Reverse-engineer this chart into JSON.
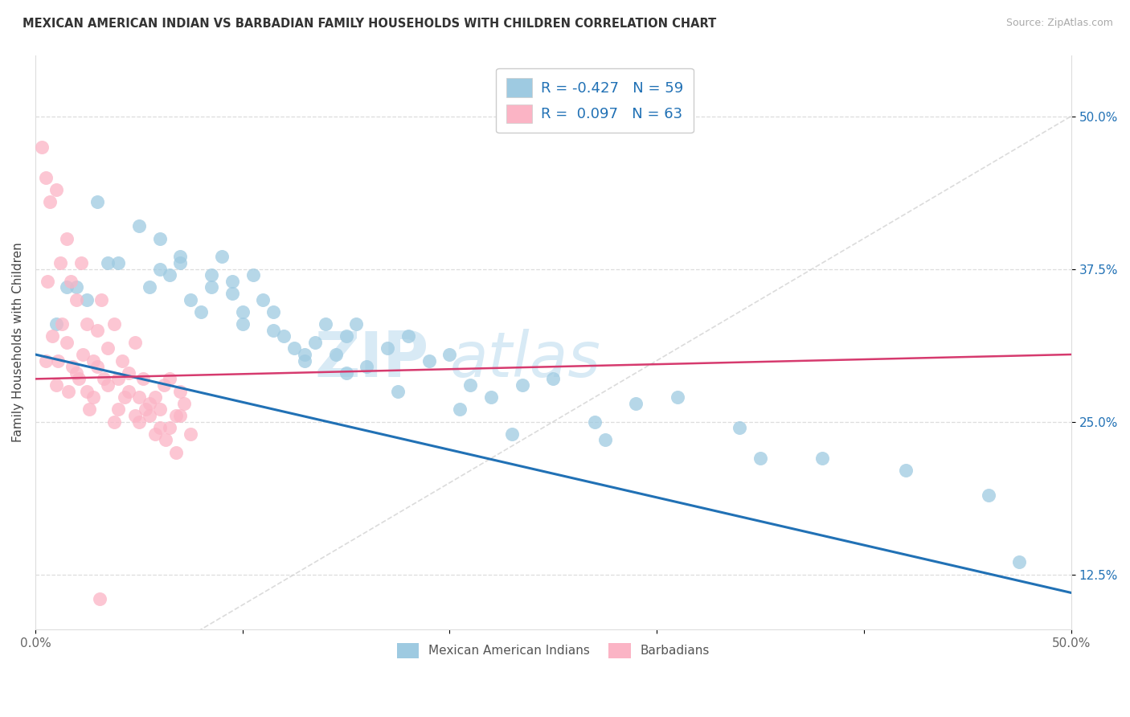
{
  "title": "MEXICAN AMERICAN INDIAN VS BARBADIAN FAMILY HOUSEHOLDS WITH CHILDREN CORRELATION CHART",
  "source": "Source: ZipAtlas.com",
  "ylabel": "Family Households with Children",
  "xlim": [
    0.0,
    50.0
  ],
  "ylim": [
    8.0,
    55.0
  ],
  "y_tick_vals": [
    12.5,
    25.0,
    37.5,
    50.0
  ],
  "y_tick_labels": [
    "12.5%",
    "25.0%",
    "37.5%",
    "50.0%"
  ],
  "x_tick_vals": [
    0,
    10,
    20,
    30,
    40,
    50
  ],
  "x_tick_labels": [
    "0.0%",
    "",
    "",
    "",
    "",
    "50.0%"
  ],
  "legend_R1": "-0.427",
  "legend_N1": "59",
  "legend_R2": "0.097",
  "legend_N2": "63",
  "color_blue": "#9ecae1",
  "color_pink": "#fbb4c5",
  "color_blue_line": "#2171b5",
  "color_pink_line": "#d63a6e",
  "color_ref_line": "#cccccc",
  "blue_x": [
    1.5,
    2.5,
    3.0,
    4.0,
    5.0,
    5.5,
    6.0,
    6.5,
    7.0,
    7.5,
    8.0,
    8.5,
    9.0,
    9.5,
    10.0,
    10.5,
    11.0,
    11.5,
    12.0,
    12.5,
    13.0,
    13.5,
    14.0,
    14.5,
    15.0,
    15.5,
    16.0,
    17.0,
    18.0,
    19.0,
    20.0,
    21.0,
    22.0,
    23.5,
    25.0,
    27.0,
    29.0,
    31.0,
    34.0,
    38.0,
    42.0,
    46.0,
    1.0,
    2.0,
    3.5,
    6.0,
    7.0,
    8.5,
    9.5,
    10.0,
    11.5,
    13.0,
    15.0,
    17.5,
    20.5,
    23.0,
    27.5,
    35.0,
    47.5
  ],
  "blue_y": [
    36.0,
    35.0,
    43.0,
    38.0,
    41.0,
    36.0,
    40.0,
    37.0,
    38.0,
    35.0,
    34.0,
    37.0,
    38.5,
    36.5,
    33.0,
    37.0,
    35.0,
    34.0,
    32.0,
    31.0,
    30.0,
    31.5,
    33.0,
    30.5,
    32.0,
    33.0,
    29.5,
    31.0,
    32.0,
    30.0,
    30.5,
    28.0,
    27.0,
    28.0,
    28.5,
    25.0,
    26.5,
    27.0,
    24.5,
    22.0,
    21.0,
    19.0,
    33.0,
    36.0,
    38.0,
    37.5,
    38.5,
    36.0,
    35.5,
    34.0,
    32.5,
    30.5,
    29.0,
    27.5,
    26.0,
    24.0,
    23.5,
    22.0,
    13.5
  ],
  "pink_x": [
    0.3,
    0.5,
    0.7,
    1.0,
    1.2,
    1.5,
    1.7,
    2.0,
    2.2,
    2.5,
    2.8,
    3.0,
    3.2,
    3.5,
    3.8,
    4.0,
    4.2,
    4.5,
    4.8,
    5.0,
    5.2,
    5.5,
    5.8,
    6.0,
    6.2,
    6.5,
    6.8,
    7.0,
    7.2,
    7.5,
    0.5,
    1.0,
    1.5,
    2.0,
    2.5,
    3.0,
    3.5,
    4.0,
    4.5,
    5.0,
    5.5,
    6.0,
    6.5,
    7.0,
    0.8,
    1.3,
    1.8,
    2.3,
    2.8,
    3.3,
    3.8,
    4.3,
    4.8,
    5.3,
    5.8,
    6.3,
    6.8,
    0.6,
    1.1,
    1.6,
    2.1,
    2.6,
    3.1
  ],
  "pink_y": [
    47.5,
    45.0,
    43.0,
    44.0,
    38.0,
    40.0,
    36.5,
    35.0,
    38.0,
    33.0,
    30.0,
    32.5,
    35.0,
    31.0,
    33.0,
    28.5,
    30.0,
    29.0,
    31.5,
    27.0,
    28.5,
    25.5,
    27.0,
    26.0,
    28.0,
    24.5,
    25.5,
    27.5,
    26.5,
    24.0,
    30.0,
    28.0,
    31.5,
    29.0,
    27.5,
    29.5,
    28.0,
    26.0,
    27.5,
    25.0,
    26.5,
    24.5,
    28.5,
    25.5,
    32.0,
    33.0,
    29.5,
    30.5,
    27.0,
    28.5,
    25.0,
    27.0,
    25.5,
    26.0,
    24.0,
    23.5,
    22.5,
    36.5,
    30.0,
    27.5,
    28.5,
    26.0,
    10.5
  ]
}
